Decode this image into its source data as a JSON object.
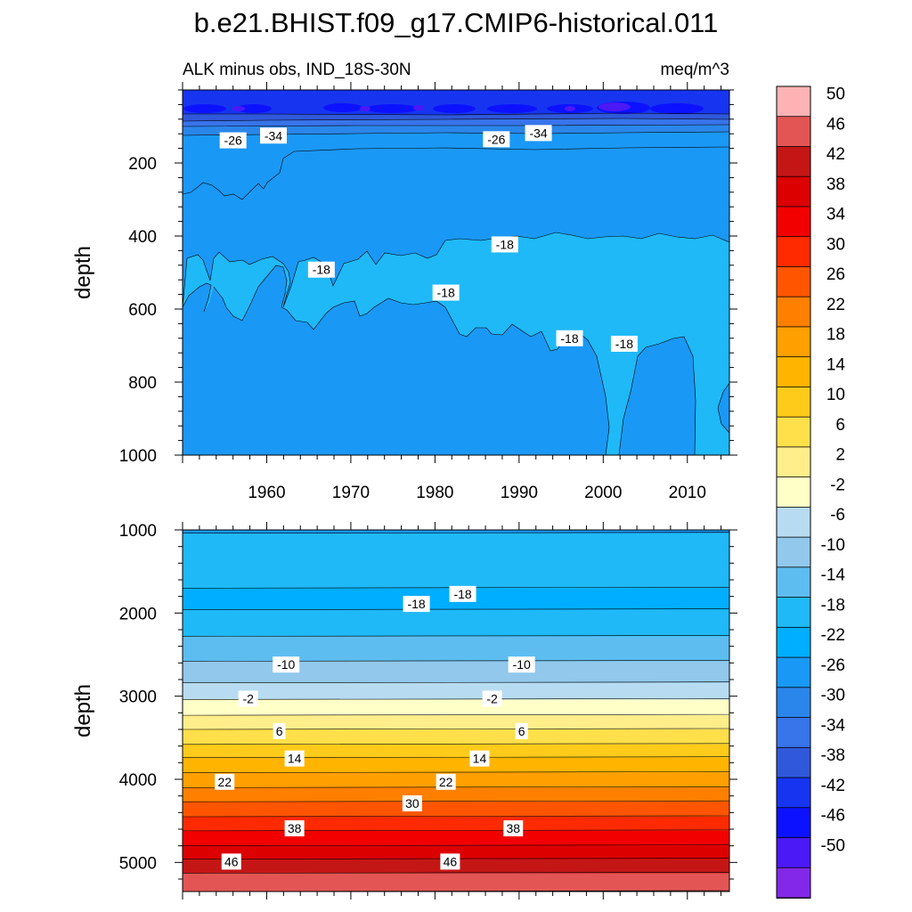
{
  "chart_data": {
    "type": "contour",
    "title": "b.e21.BHIST.f09_g17.CMIP6-historical.011",
    "subtitle_left": "ALK minus obs, IND_18S-30N",
    "subtitle_right": "meq/m^3",
    "xlabel": "",
    "ylabel": "depth",
    "xlim": [
      1950,
      2015
    ],
    "x_ticks": [
      1960,
      1970,
      1980,
      1990,
      2000,
      2010
    ],
    "panels": [
      {
        "name": "upper",
        "ylim": [
          0,
          1000
        ],
        "y_ticks": [
          200,
          400,
          600,
          800,
          1000
        ],
        "shows_x_tick_labels": true,
        "contour_labels": [
          {
            "text": "-26",
            "x": 1956.0,
            "y": 138
          },
          {
            "text": "-34",
            "x": 1960.8,
            "y": 125
          },
          {
            "text": "-26",
            "x": 1987.3,
            "y": 135
          },
          {
            "text": "-34",
            "x": 1992.3,
            "y": 118
          },
          {
            "text": "-18",
            "x": 1966.5,
            "y": 492
          },
          {
            "text": "-18",
            "x": 1988.3,
            "y": 423
          },
          {
            "text": "-18",
            "x": 1981.3,
            "y": 555
          },
          {
            "text": "-18",
            "x": 1996.0,
            "y": 680
          },
          {
            "text": "-18",
            "x": 2002.5,
            "y": 695
          }
        ]
      },
      {
        "name": "lower",
        "ylim": [
          1000,
          5350
        ],
        "y_ticks": [
          1000,
          2000,
          3000,
          4000,
          5000
        ],
        "shows_x_tick_labels": false,
        "contour_labels": [
          {
            "text": "-18",
            "x": 1983.3,
            "y": 1770
          },
          {
            "text": "-18",
            "x": 1977.8,
            "y": 1890
          },
          {
            "text": "-10",
            "x": 1962.3,
            "y": 2620
          },
          {
            "text": "-10",
            "x": 1990.3,
            "y": 2620
          },
          {
            "text": "-2",
            "x": 1957.8,
            "y": 3030
          },
          {
            "text": "-2",
            "x": 1986.8,
            "y": 3030
          },
          {
            "text": "6",
            "x": 1961.5,
            "y": 3420
          },
          {
            "text": "6",
            "x": 1990.3,
            "y": 3420
          },
          {
            "text": "14",
            "x": 1963.3,
            "y": 3750
          },
          {
            "text": "14",
            "x": 1985.3,
            "y": 3750
          },
          {
            "text": "22",
            "x": 1955.0,
            "y": 4030
          },
          {
            "text": "22",
            "x": 1981.3,
            "y": 4030
          },
          {
            "text": "30",
            "x": 1977.3,
            "y": 4290
          },
          {
            "text": "38",
            "x": 1963.3,
            "y": 4590
          },
          {
            "text": "38",
            "x": 1989.3,
            "y": 4590
          },
          {
            "text": "46",
            "x": 1955.8,
            "y": 4990
          },
          {
            "text": "46",
            "x": 1981.8,
            "y": 4990
          }
        ]
      }
    ],
    "colorbar": {
      "labels": [
        "50",
        "46",
        "42",
        "38",
        "34",
        "30",
        "26",
        "22",
        "18",
        "14",
        "10",
        "6",
        "2",
        "-2",
        "-6",
        "-10",
        "-14",
        "-18",
        "-22",
        "-26",
        "-30",
        "-34",
        "-38",
        "-42",
        "-46",
        "-50"
      ],
      "colors": [
        "#FDB3B3",
        "#E35555",
        "#C51616",
        "#DC0000",
        "#F20000",
        "#FF2A00",
        "#FF5500",
        "#FF7F00",
        "#FF9F00",
        "#FFB400",
        "#FFCB1A",
        "#FFE04A",
        "#FFEE8A",
        "#FFFFC8",
        "#B7DCF2",
        "#91C8EC",
        "#5DBDF0",
        "#1FB9F8",
        "#00AEFF",
        "#1A98F6",
        "#2A86EA",
        "#3874EA",
        "#3058DB",
        "#1735F0",
        "#0C12FF",
        "#4B18F6",
        "#8327E8"
      ]
    }
  }
}
